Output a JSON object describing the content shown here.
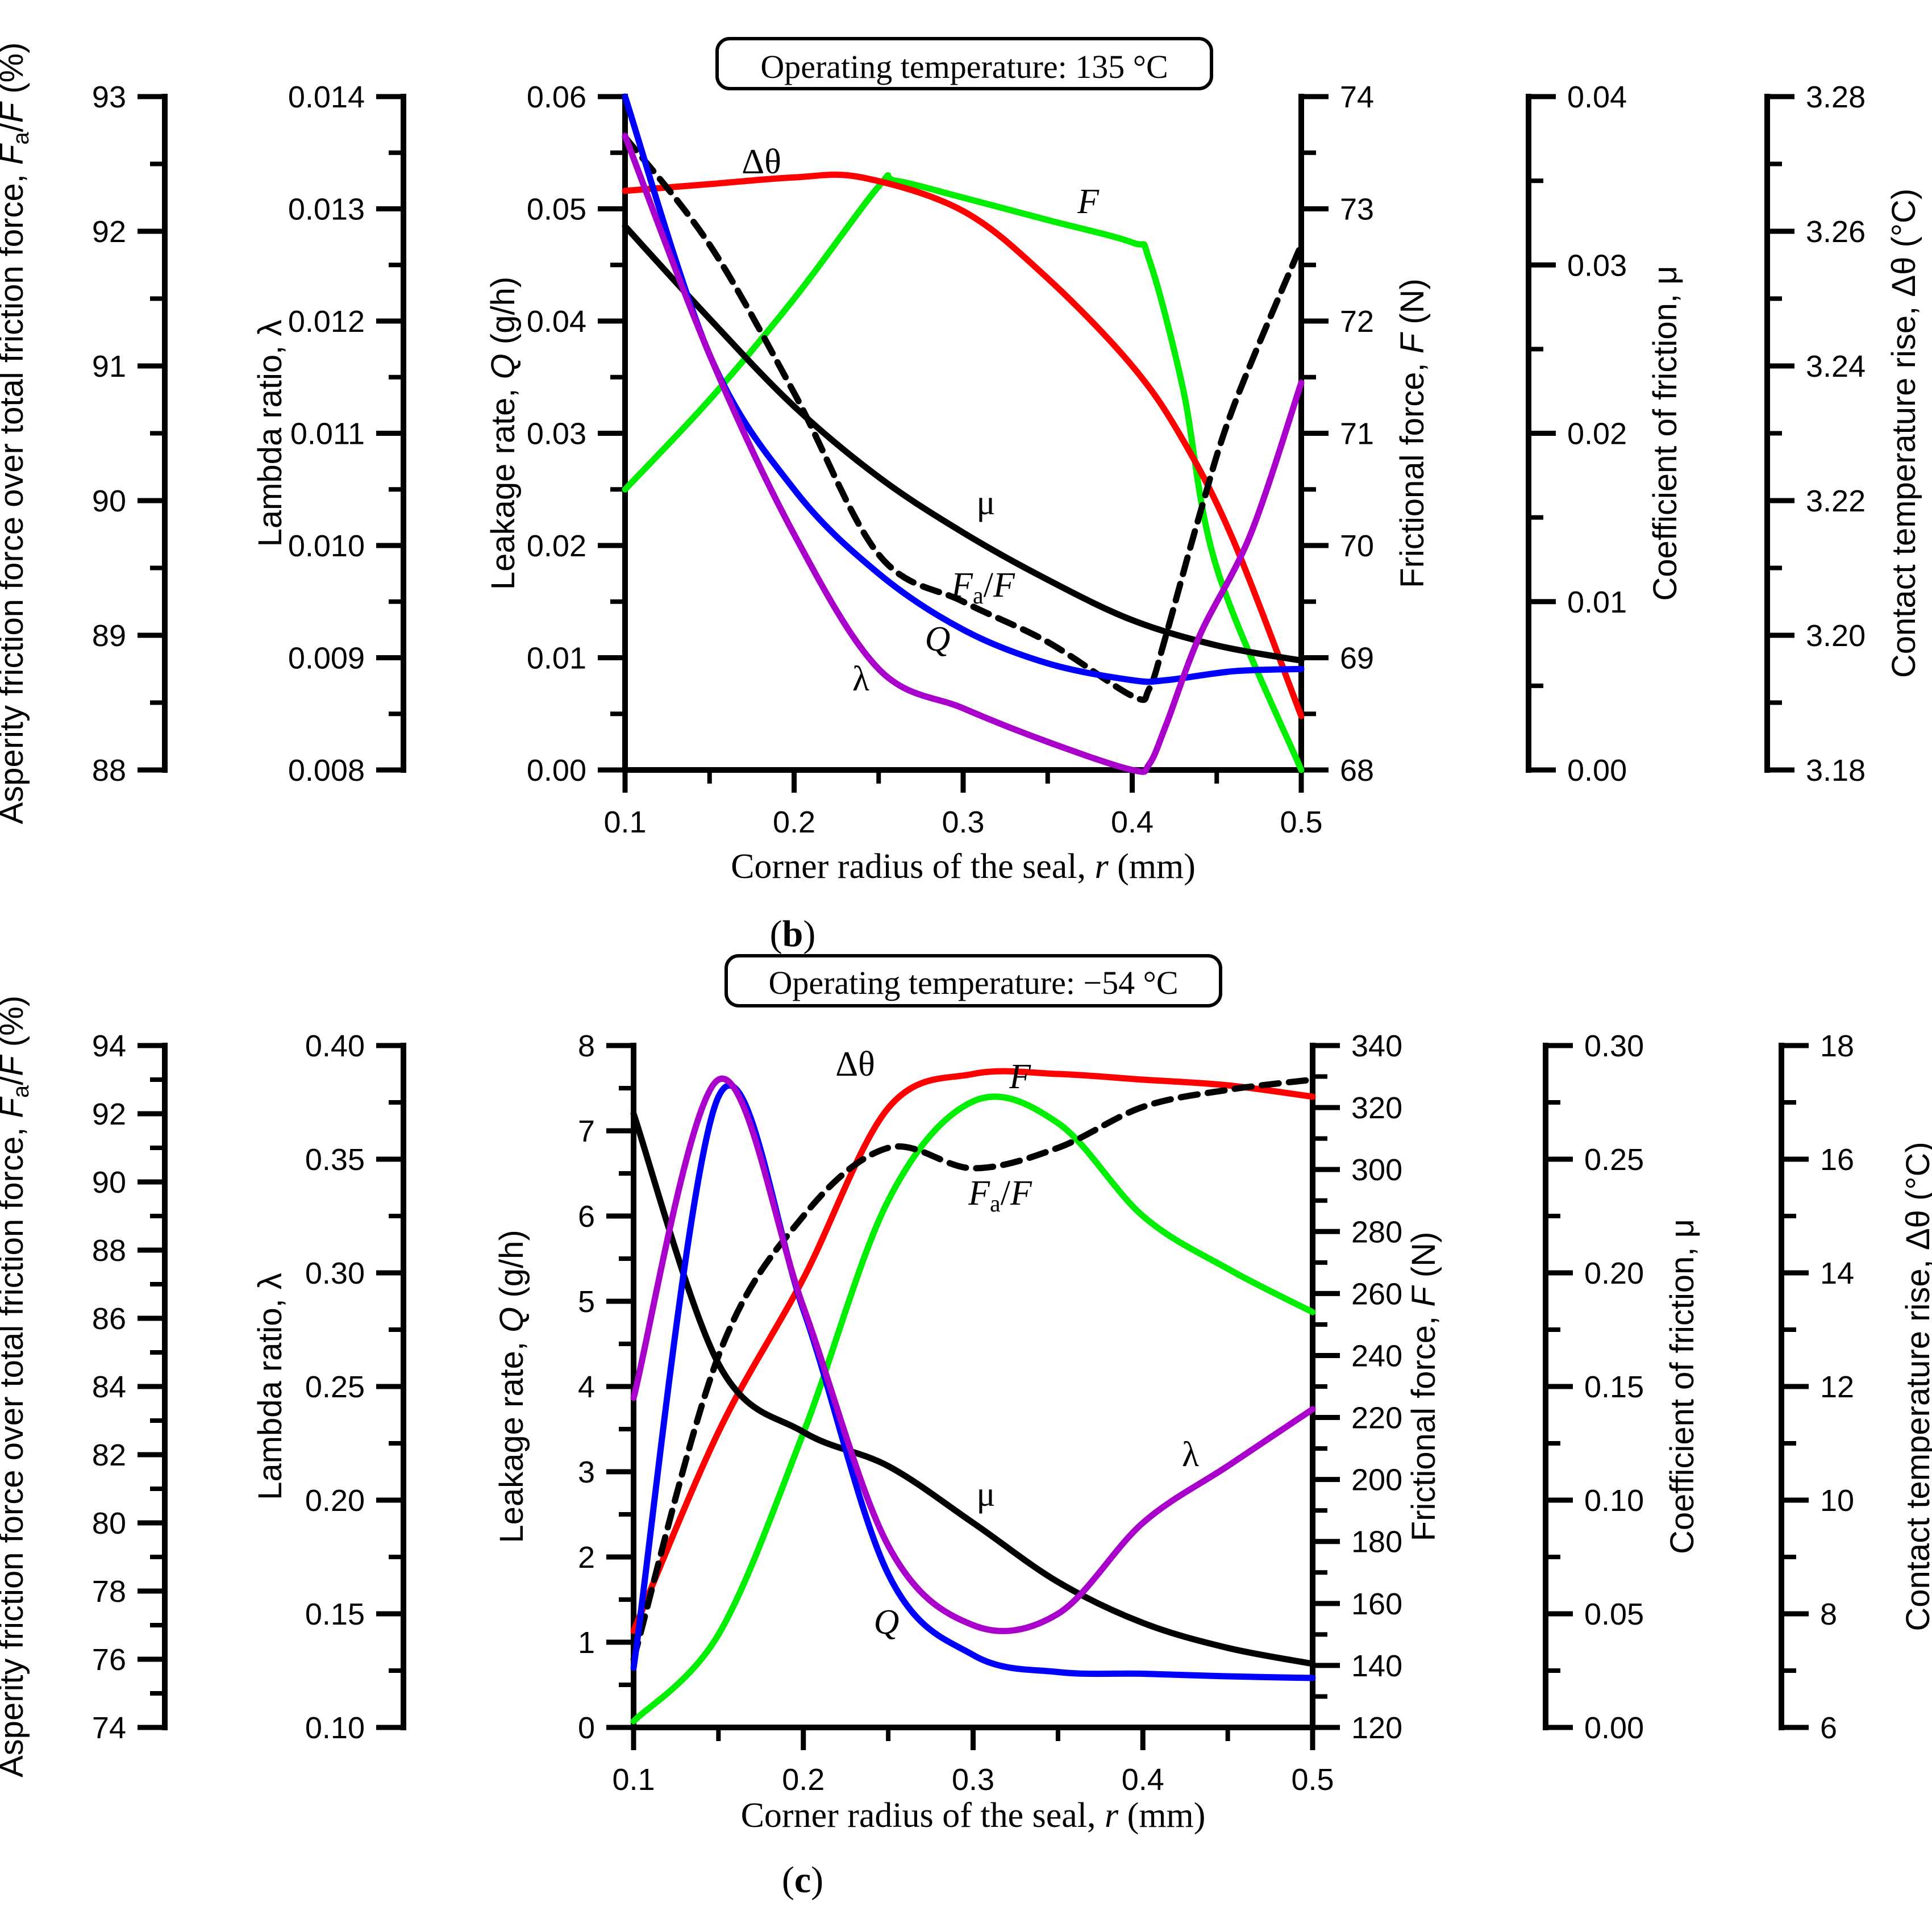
{
  "chart_data": [
    {
      "type": "line",
      "panel_label": "(b)",
      "panel_letter": "b",
      "title": "Operating temperature: 135 °C",
      "xlabel": "Corner radius of the seal, r (mm)",
      "xlabel_parts": [
        "Corner radius of the seal, ",
        "r",
        " (mm)"
      ],
      "xlim": [
        0.1,
        0.5
      ],
      "xticks": [
        0.1,
        0.2,
        0.3,
        0.4,
        0.5
      ],
      "xtick_labels": [
        "0.1",
        "0.2",
        "0.3",
        "0.4",
        "0.5"
      ],
      "axes": [
        {
          "key": "fa",
          "label": "Asperity friction force over total friction force, Fa/F (%)",
          "label_parts": [
            "Asperity friction force over total friction force, ",
            "F",
            "a",
            "/",
            "F",
            " (%)"
          ],
          "range": [
            88,
            93
          ],
          "ticks": [
            "88",
            "89",
            "90",
            "91",
            "92",
            "93"
          ]
        },
        {
          "key": "lambda",
          "label": "Lambda ratio, λ",
          "label_parts": [
            "Lambda ratio, λ"
          ],
          "range": [
            0.008,
            0.014
          ],
          "ticks": [
            "0.008",
            "0.009",
            "0.010",
            "0.011",
            "0.012",
            "0.013",
            "0.014"
          ]
        },
        {
          "key": "q",
          "label": "Leakage rate, Q (g/h)",
          "label_parts": [
            "Leakage rate, ",
            "Q",
            " (g/h)"
          ],
          "range": [
            0,
            0.06
          ],
          "ticks": [
            "0.00",
            "0.01",
            "0.02",
            "0.03",
            "0.04",
            "0.05",
            "0.06"
          ]
        },
        {
          "key": "f",
          "label": "Frictional force, F (N)",
          "label_parts": [
            "Frictional force, ",
            "F",
            " (N)"
          ],
          "range": [
            68,
            74
          ],
          "ticks": [
            "68",
            "69",
            "70",
            "71",
            "72",
            "73",
            "74"
          ]
        },
        {
          "key": "mu",
          "label": "Coefficient of friction, μ",
          "label_parts": [
            "Coefficient of friction, μ"
          ],
          "range": [
            0,
            0.04
          ],
          "ticks": [
            "0.00",
            "0.01",
            "0.02",
            "0.03",
            "0.04"
          ]
        },
        {
          "key": "dt",
          "label": "Contact temperature rise, Δθ (°C)",
          "label_parts": [
            "Contact temperature rise, Δθ (°C)"
          ],
          "range": [
            3.18,
            3.28
          ],
          "ticks": [
            "3.18",
            "3.20",
            "3.22",
            "3.24",
            "3.26",
            "3.28"
          ]
        }
      ],
      "series": [
        {
          "name": "F",
          "axis": "f",
          "color": "#00ee00",
          "x": [
            0.1,
            0.15,
            0.2,
            0.25,
            0.26,
            0.3,
            0.35,
            0.4,
            0.41,
            0.43,
            0.45,
            0.5
          ],
          "y": [
            70.5,
            71.3,
            72.2,
            73.2,
            73.25,
            73.1,
            72.9,
            72.7,
            72.55,
            71.4,
            69.8,
            68.0
          ]
        },
        {
          "name": "Δθ",
          "axis": "dt",
          "color": "#ff0000",
          "x": [
            0.1,
            0.15,
            0.2,
            0.24,
            0.3,
            0.35,
            0.4,
            0.43,
            0.46,
            0.5
          ],
          "y": [
            3.266,
            3.267,
            3.268,
            3.268,
            3.263,
            3.253,
            3.24,
            3.229,
            3.214,
            3.188
          ]
        },
        {
          "name": "Fa/F",
          "axis": "fa",
          "color": "#000000",
          "dashed": true,
          "x": [
            0.1,
            0.15,
            0.2,
            0.25,
            0.3,
            0.35,
            0.4,
            0.41,
            0.42,
            0.44,
            0.46,
            0.5
          ],
          "y": [
            92.7,
            91.9,
            90.8,
            89.6,
            89.25,
            88.95,
            88.55,
            88.6,
            89.0,
            89.9,
            90.7,
            91.9
          ]
        },
        {
          "name": "μ",
          "axis": "mu",
          "color": "#000000",
          "x": [
            0.1,
            0.15,
            0.2,
            0.25,
            0.3,
            0.35,
            0.4,
            0.45,
            0.5
          ],
          "y": [
            0.0323,
            0.0268,
            0.0216,
            0.0174,
            0.0141,
            0.0113,
            0.0089,
            0.0074,
            0.0065
          ]
        },
        {
          "name": "Q",
          "axis": "q",
          "color": "#0000ff",
          "x": [
            0.1,
            0.15,
            0.2,
            0.25,
            0.3,
            0.35,
            0.4,
            0.42,
            0.46,
            0.5
          ],
          "y": [
            0.06,
            0.037,
            0.025,
            0.0175,
            0.0125,
            0.0095,
            0.008,
            0.008,
            0.0088,
            0.009
          ]
        },
        {
          "name": "λ",
          "axis": "lambda",
          "color": "#aa00cc",
          "x": [
            0.1,
            0.15,
            0.2,
            0.25,
            0.3,
            0.35,
            0.4,
            0.41,
            0.42,
            0.44,
            0.47,
            0.5
          ],
          "y": [
            0.01365,
            0.0117,
            0.0101,
            0.0089,
            0.00855,
            0.00825,
            0.008,
            0.00805,
            0.0084,
            0.0092,
            0.0101,
            0.01145
          ]
        }
      ],
      "annotations": [
        {
          "series": "Δθ",
          "text": "Δθ"
        },
        {
          "series": "F",
          "text": "F"
        },
        {
          "series": "μ",
          "text": "μ"
        },
        {
          "series": "Fa/F",
          "text": "Fa/F"
        },
        {
          "series": "Q",
          "text": "Q"
        },
        {
          "series": "λ",
          "text": "λ"
        }
      ]
    },
    {
      "type": "line",
      "panel_label": "(c)",
      "panel_letter": "c",
      "title": "Operating temperature: −54 °C",
      "xlabel": "Corner radius of the seal, r (mm)",
      "xlabel_parts": [
        "Corner radius of the seal, ",
        "r",
        " (mm)"
      ],
      "xlim": [
        0.1,
        0.5
      ],
      "xticks": [
        0.1,
        0.2,
        0.3,
        0.4,
        0.5
      ],
      "xtick_labels": [
        "0.1",
        "0.2",
        "0.3",
        "0.4",
        "0.5"
      ],
      "axes": [
        {
          "key": "fa",
          "label": "Asperity friction force over total friction force, Fa/F (%)",
          "label_parts": [
            "Asperity friction force over total friction force, ",
            "F",
            "a",
            "/",
            "F",
            " (%)"
          ],
          "range": [
            74,
            94
          ],
          "ticks": [
            "74",
            "76",
            "78",
            "80",
            "82",
            "84",
            "86",
            "88",
            "90",
            "92",
            "94"
          ]
        },
        {
          "key": "lambda",
          "label": "Lambda ratio, λ",
          "label_parts": [
            "Lambda ratio, λ"
          ],
          "range": [
            0.1,
            0.4
          ],
          "ticks": [
            "0.10",
            "0.15",
            "0.20",
            "0.25",
            "0.30",
            "0.35",
            "0.40"
          ]
        },
        {
          "key": "q",
          "label": "Leakage rate, Q (g/h)",
          "label_parts": [
            "Leakage rate, ",
            "Q",
            " (g/h)"
          ],
          "range": [
            0,
            8
          ],
          "ticks": [
            "0",
            "1",
            "2",
            "3",
            "4",
            "5",
            "6",
            "7",
            "8"
          ]
        },
        {
          "key": "f",
          "label": "Frictional force, F (N)",
          "label_parts": [
            "Frictional force, ",
            "F",
            " (N)"
          ],
          "range": [
            120,
            340
          ],
          "ticks": [
            "120",
            "140",
            "160",
            "180",
            "200",
            "220",
            "240",
            "260",
            "280",
            "300",
            "320",
            "340"
          ]
        },
        {
          "key": "mu",
          "label": "Coefficient of friction, μ",
          "label_parts": [
            "Coefficient of friction, μ"
          ],
          "range": [
            0,
            0.3
          ],
          "ticks": [
            "0.00",
            "0.05",
            "0.10",
            "0.15",
            "0.20",
            "0.25",
            "0.30"
          ]
        },
        {
          "key": "dt",
          "label": "Contact temperature rise, Δθ (°C)",
          "label_parts": [
            "Contact temperature rise, Δθ (°C)"
          ],
          "range": [
            6,
            18
          ],
          "ticks": [
            "6",
            "8",
            "10",
            "12",
            "14",
            "16",
            "18"
          ]
        }
      ],
      "series": [
        {
          "name": "F",
          "axis": "f",
          "color": "#00ee00",
          "x": [
            0.1,
            0.15,
            0.2,
            0.25,
            0.3,
            0.35,
            0.4,
            0.45,
            0.5
          ],
          "y": [
            122,
            150,
            215,
            290,
            322,
            315,
            285,
            268,
            254
          ]
        },
        {
          "name": "Δθ",
          "axis": "dt",
          "color": "#ff0000",
          "x": [
            0.1,
            0.15,
            0.2,
            0.25,
            0.3,
            0.35,
            0.4,
            0.45,
            0.5
          ],
          "y": [
            7.7,
            11.2,
            13.9,
            16.9,
            17.5,
            17.5,
            17.4,
            17.3,
            17.1
          ]
        },
        {
          "name": "Fa/F",
          "axis": "fa",
          "color": "#000000",
          "dashed": true,
          "x": [
            0.1,
            0.15,
            0.2,
            0.25,
            0.3,
            0.35,
            0.4,
            0.45,
            0.5
          ],
          "y": [
            76.0,
            84.9,
            89.0,
            91.0,
            90.4,
            91.0,
            92.2,
            92.7,
            93.0
          ]
        },
        {
          "name": "μ",
          "axis": "mu",
          "color": "#000000",
          "x": [
            0.1,
            0.15,
            0.2,
            0.25,
            0.3,
            0.35,
            0.4,
            0.45,
            0.5
          ],
          "y": [
            0.27,
            0.16,
            0.13,
            0.115,
            0.09,
            0.064,
            0.046,
            0.035,
            0.028
          ]
        },
        {
          "name": "Q",
          "axis": "q",
          "color": "#0000ff",
          "x": [
            0.1,
            0.15,
            0.2,
            0.25,
            0.3,
            0.35,
            0.4,
            0.45,
            0.5
          ],
          "y": [
            0.7,
            7.4,
            4.9,
            1.8,
            0.85,
            0.65,
            0.63,
            0.6,
            0.58
          ]
        },
        {
          "name": "λ",
          "axis": "lambda",
          "color": "#aa00cc",
          "x": [
            0.1,
            0.15,
            0.2,
            0.25,
            0.3,
            0.35,
            0.4,
            0.45,
            0.5
          ],
          "y": [
            0.245,
            0.385,
            0.285,
            0.18,
            0.145,
            0.15,
            0.19,
            0.215,
            0.24
          ]
        }
      ],
      "annotations": [
        {
          "series": "Δθ",
          "text": "Δθ"
        },
        {
          "series": "F",
          "text": "F"
        },
        {
          "series": "Fa/F",
          "text": "Fa/F"
        },
        {
          "series": "μ",
          "text": "μ"
        },
        {
          "series": "Q",
          "text": "Q"
        },
        {
          "series": "λ",
          "text": "λ"
        }
      ]
    }
  ]
}
